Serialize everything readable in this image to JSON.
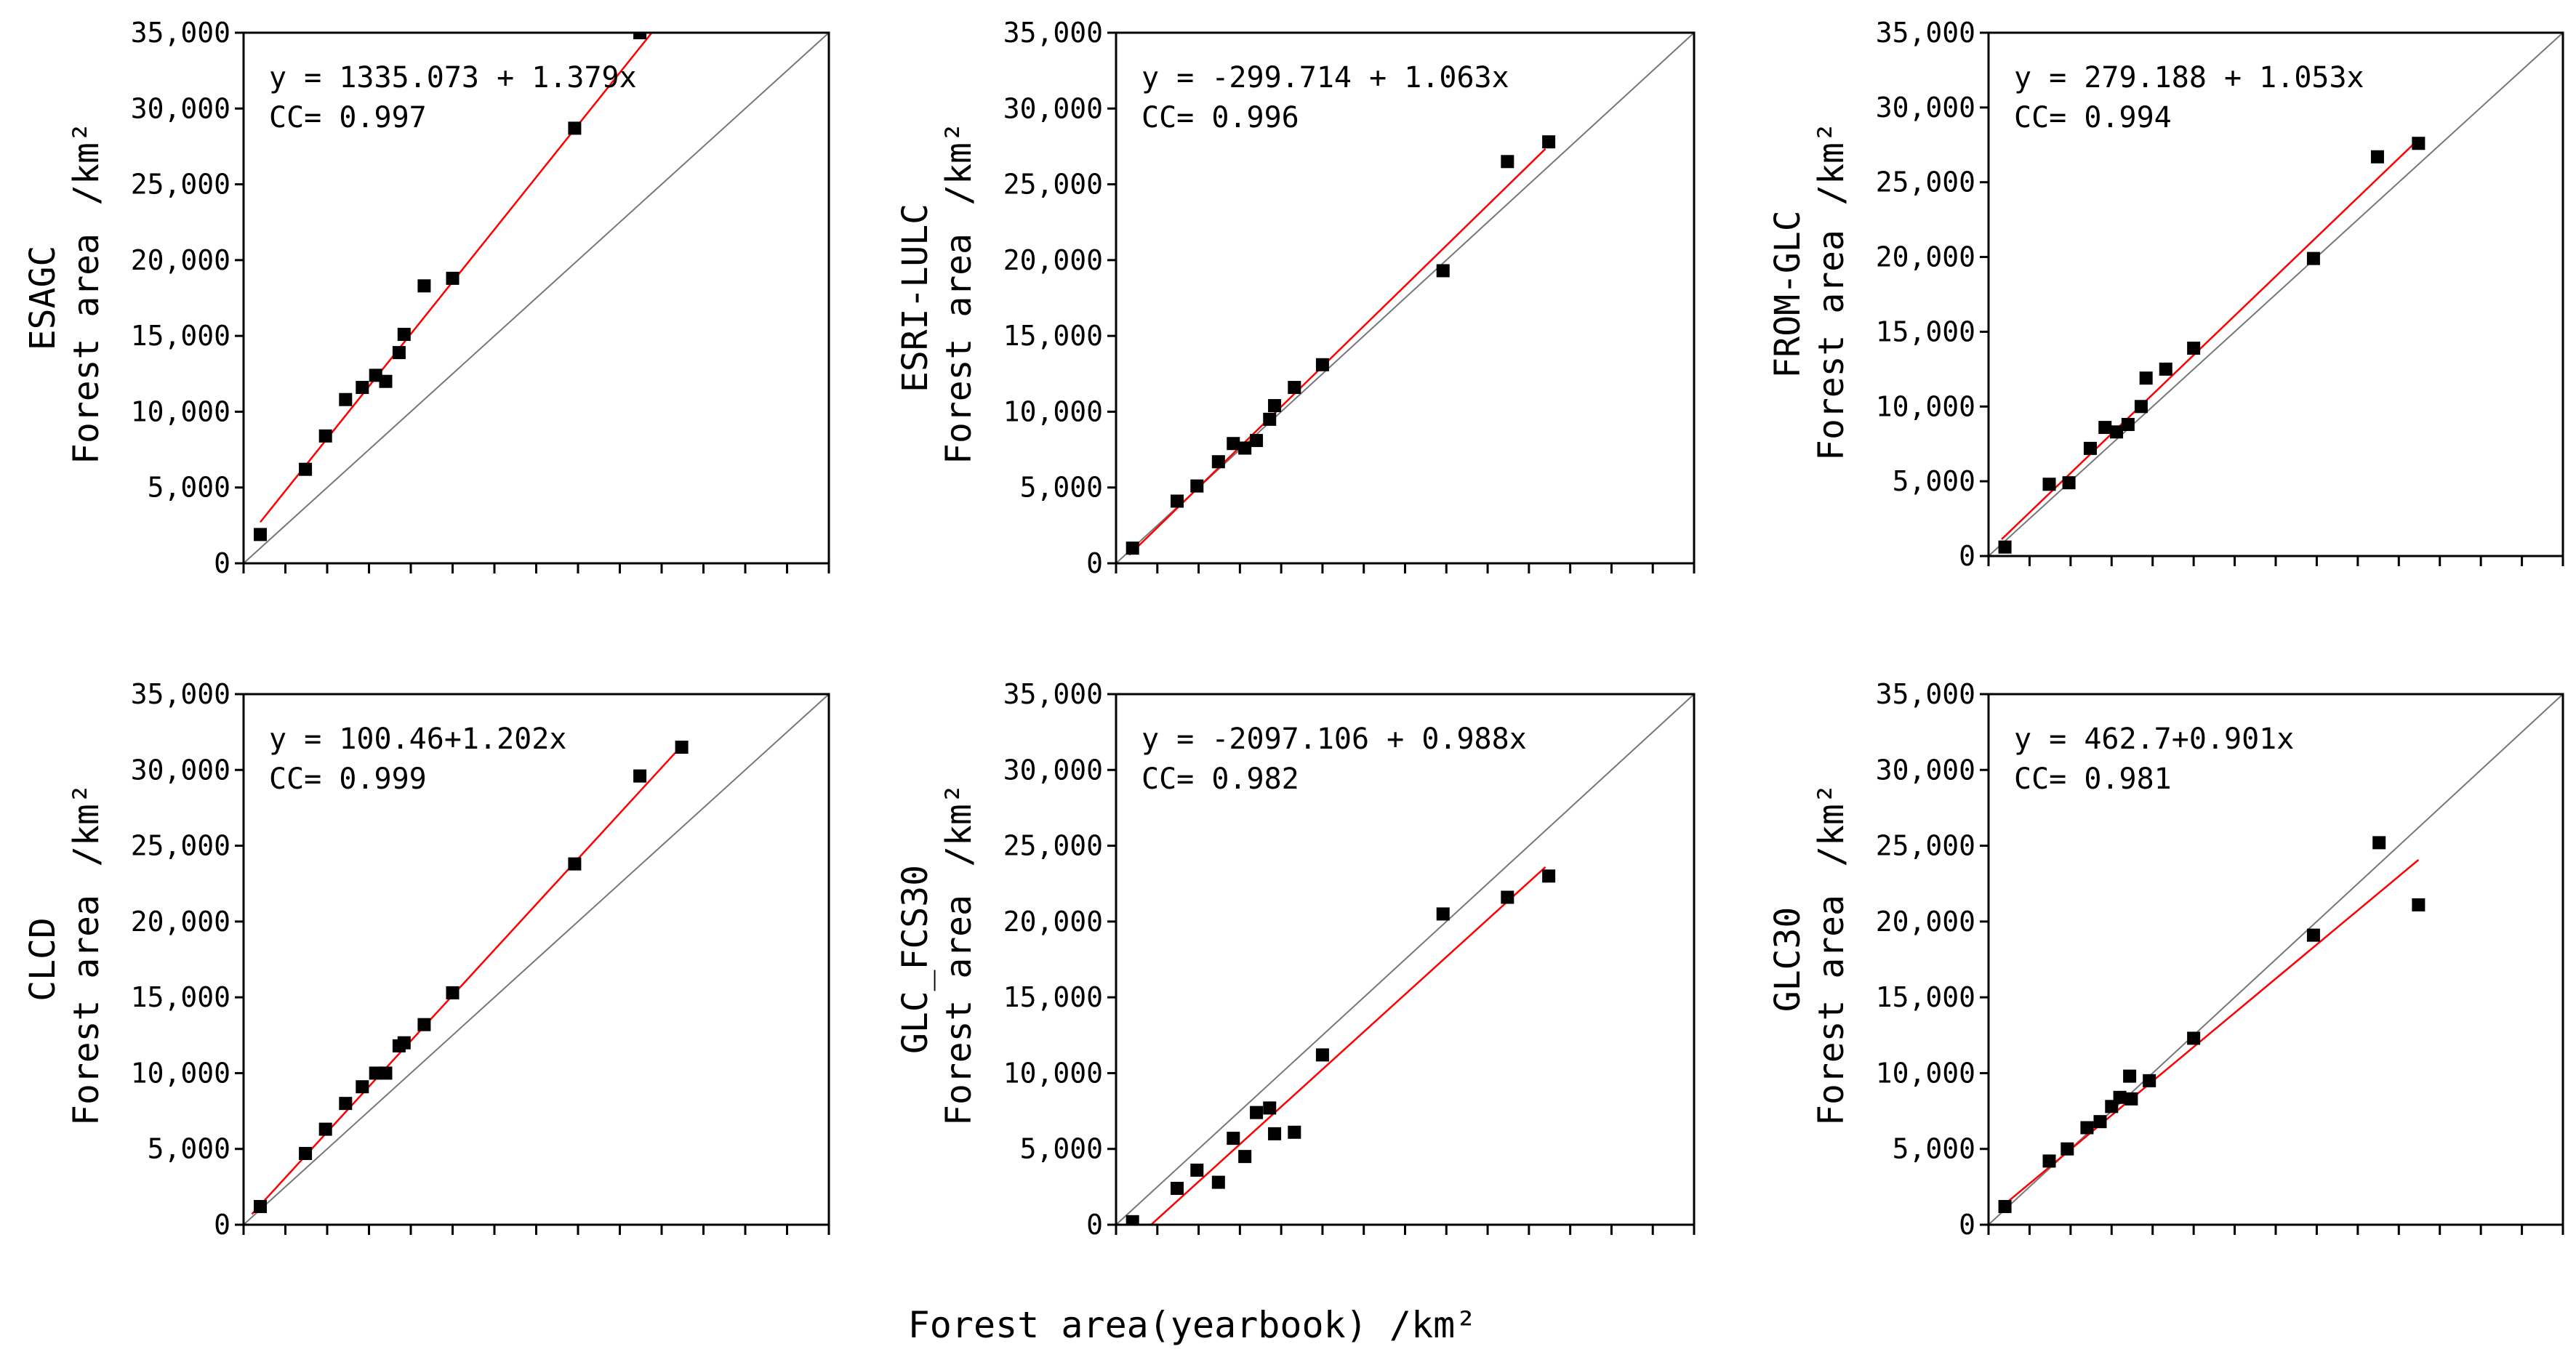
{
  "figure": {
    "xlabel": "Forest area(yearbook)   /km²",
    "colors": {
      "points": "#000000",
      "fit_line": "#ff0000",
      "identity_line": "#777777",
      "frame": "#000000"
    }
  },
  "chart_data": [
    {
      "type": "scatter",
      "panel": "ESAGC",
      "ylabel_name": "ESAGC",
      "ylabel_quantity": "Forest area",
      "ylabel_unit": "/km²",
      "equation": "y = 1335.073 + 1.379x",
      "cc": "CC= 0.997",
      "fit": {
        "intercept": 1335.073,
        "slope": 1.379,
        "x_range": [
          1000,
          24500
        ]
      },
      "xlim": [
        0,
        35000
      ],
      "ylim": [
        0,
        35000
      ],
      "yticks": [
        "0",
        "5,000",
        "10,000",
        "15,000",
        "20,000",
        "25,000",
        "30,000",
        "35,000"
      ],
      "x": [
        1000,
        3700,
        4900,
        6100,
        7100,
        7900,
        8500,
        9300,
        9600,
        10800,
        12500,
        19800,
        23700
      ],
      "y": [
        1900,
        6200,
        8400,
        10800,
        11600,
        12400,
        12000,
        13900,
        15100,
        18300,
        18800,
        28700,
        35000
      ]
    },
    {
      "type": "scatter",
      "panel": "ESRI-LULC",
      "ylabel_name": "ESRI-LULC",
      "ylabel_quantity": "Forest area",
      "ylabel_unit": "/km²",
      "equation": "y = -299.714 + 1.063x",
      "cc": "CC= 0.996",
      "fit": {
        "intercept": -299.714,
        "slope": 1.063,
        "x_range": [
          800,
          26000
        ]
      },
      "xlim": [
        0,
        35000
      ],
      "ylim": [
        0,
        35000
      ],
      "yticks": [
        "0",
        "5,000",
        "10,000",
        "15,000",
        "20,000",
        "25,000",
        "30,000",
        "35,000"
      ],
      "x": [
        1000,
        3700,
        4900,
        6200,
        7100,
        7800,
        8500,
        9300,
        9600,
        10800,
        12500,
        19800,
        23700,
        26200
      ],
      "y": [
        1000,
        4100,
        5100,
        6700,
        7900,
        7600,
        8100,
        9500,
        10400,
        11600,
        13100,
        19300,
        26500,
        27800
      ]
    },
    {
      "type": "scatter",
      "panel": "FROM-GLC",
      "ylabel_name": "FROM-GLC",
      "ylabel_quantity": "Forest area",
      "ylabel_unit": "/km²",
      "equation": "y = 279.188 + 1.053x",
      "cc": "CC= 0.994",
      "fit": {
        "intercept": 279.188,
        "slope": 1.053,
        "x_range": [
          800,
          26000
        ]
      },
      "xlim": [
        0,
        35000
      ],
      "ylim": [
        0,
        35000
      ],
      "yticks": [
        "0",
        "5,000",
        "10,000",
        "15,000",
        "20,000",
        "25,000",
        "30,000",
        "35,000"
      ],
      "x": [
        1000,
        3700,
        4900,
        6200,
        7100,
        7800,
        8500,
        9300,
        9600,
        10800,
        12500,
        19800,
        23700,
        26200
      ],
      "y": [
        600,
        4800,
        4900,
        7200,
        8600,
        8300,
        8800,
        10000,
        11900,
        12500,
        13900,
        19900,
        26700,
        27600
      ]
    },
    {
      "type": "scatter",
      "panel": "CLCD",
      "ylabel_name": "CLCD",
      "ylabel_quantity": "Forest area",
      "ylabel_unit": "/km²",
      "equation": "y =  100.46+1.202x",
      "cc": "CC= 0.999",
      "fit": {
        "intercept": 100.46,
        "slope": 1.202,
        "x_range": [
          500,
          26200
        ]
      },
      "xlim": [
        0,
        35000
      ],
      "ylim": [
        0,
        35000
      ],
      "yticks": [
        "0",
        "5,000",
        "10,000",
        "15,000",
        "20,000",
        "25,000",
        "30,000",
        "35,000"
      ],
      "x": [
        1000,
        3700,
        4900,
        6100,
        7100,
        7900,
        8500,
        9300,
        9600,
        10800,
        12500,
        19800,
        23700,
        26200
      ],
      "y": [
        1200,
        4700,
        6300,
        8000,
        9100,
        10000,
        10000,
        11800,
        12000,
        13200,
        15300,
        23800,
        29600,
        31500
      ]
    },
    {
      "type": "scatter",
      "panel": "GLC_FCS30",
      "ylabel_name": "GLC_FCS30",
      "ylabel_quantity": "Forest area",
      "ylabel_unit": "/km²",
      "equation": "y = -2097.106 + 0.988x",
      "cc": "CC= 0.982",
      "fit": {
        "intercept": -2097.106,
        "slope": 0.988,
        "x_range": [
          2100,
          26000
        ]
      },
      "xlim": [
        0,
        35000
      ],
      "ylim": [
        0,
        35000
      ],
      "yticks": [
        "0",
        "5,000",
        "10,000",
        "15,000",
        "20,000",
        "25,000",
        "30,000",
        "35,000"
      ],
      "x": [
        1000,
        3700,
        4900,
        6200,
        7100,
        7800,
        8500,
        9300,
        9600,
        10800,
        12500,
        19800,
        23700,
        26200
      ],
      "y": [
        200,
        2400,
        3600,
        2800,
        5700,
        4500,
        7400,
        7700,
        6000,
        6100,
        11200,
        20500,
        21600,
        23000
      ]
    },
    {
      "type": "scatter",
      "panel": "GLC30",
      "ylabel_name": "GLC30",
      "ylabel_quantity": "Forest area",
      "ylabel_unit": "/km²",
      "equation": "y = 462.7+0.901x",
      "cc": "CC= 0.981",
      "fit": {
        "intercept": 462.7,
        "slope": 0.901,
        "x_range": [
          800,
          26200
        ]
      },
      "xlim": [
        0,
        35000
      ],
      "ylim": [
        0,
        35000
      ],
      "yticks": [
        "0",
        "5,000",
        "10,000",
        "15,000",
        "20,000",
        "25,000",
        "30,000",
        "35,000"
      ],
      "x": [
        1000,
        3700,
        4800,
        6000,
        6800,
        7500,
        8000,
        8600,
        8700,
        9800,
        12500,
        19800,
        23800,
        26200
      ],
      "y": [
        1200,
        4200,
        5000,
        6400,
        6800,
        7800,
        8400,
        9800,
        8300,
        9500,
        12300,
        19100,
        25200,
        21100
      ]
    }
  ]
}
